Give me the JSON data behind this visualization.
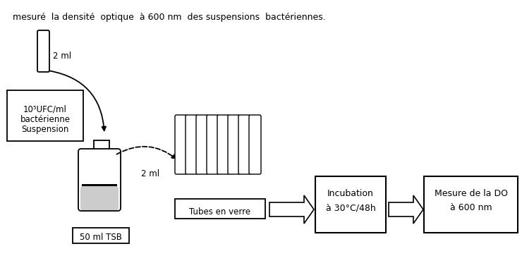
{
  "title_text": "mesuré  la densité  optique  à 600 nm  des suspensions  bactériennes.",
  "background_color": "#ffffff",
  "box_color": "#000000",
  "box_fill": "#ffffff",
  "gray_fill": "#cccccc",
  "black_fill": "#000000",
  "arrow_color": "#000000",
  "text_color": "#000000",
  "suspension_label_1": "Suspension",
  "suspension_label_2": "bactérienne",
  "suspension_label_3": "10⁵UFC/ml",
  "ml_label_1": "2 ml",
  "ml_label_2": "2 ml",
  "tsb_label": "50 ml TSB",
  "tubes_label": "Tubes en verre",
  "incubation_label_1": "Incubation",
  "incubation_label_2": "à 30°C/48h",
  "mesure_label_1": "Mesure de la DO",
  "mesure_label_2": "à 600 nm"
}
